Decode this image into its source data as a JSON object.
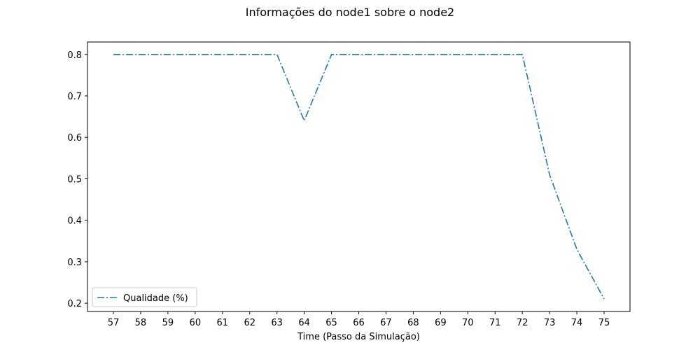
{
  "chart_data": {
    "type": "line",
    "title": "Informações do node1 sobre o node2",
    "xlabel": "Time (Passo da Simulação)",
    "ylabel": "",
    "x": [
      57,
      58,
      59,
      60,
      61,
      62,
      63,
      64,
      65,
      66,
      67,
      68,
      69,
      70,
      71,
      72,
      73,
      74,
      75
    ],
    "series": [
      {
        "name": "Qualidade (%)",
        "color": "#1f77b4",
        "line_style": "dashdot",
        "values": [
          0.8,
          0.8,
          0.8,
          0.8,
          0.8,
          0.8,
          0.8,
          0.64,
          0.8,
          0.8,
          0.8,
          0.8,
          0.8,
          0.8,
          0.8,
          0.8,
          0.51,
          0.33,
          0.21
        ]
      }
    ],
    "xlim": [
      56.05,
      75.95
    ],
    "ylim": [
      0.18,
      0.83
    ],
    "yticks": [
      0.2,
      0.3,
      0.4,
      0.5,
      0.6,
      0.7,
      0.8
    ],
    "ytick_labels": [
      "0.2",
      "0.3",
      "0.4",
      "0.5",
      "0.6",
      "0.7",
      "0.8"
    ],
    "xtick_labels": [
      "57",
      "58",
      "59",
      "60",
      "61",
      "62",
      "63",
      "64",
      "65",
      "66",
      "67",
      "68",
      "69",
      "70",
      "71",
      "72",
      "73",
      "74",
      "75"
    ],
    "grid": false,
    "legend_position": "lower-left"
  }
}
